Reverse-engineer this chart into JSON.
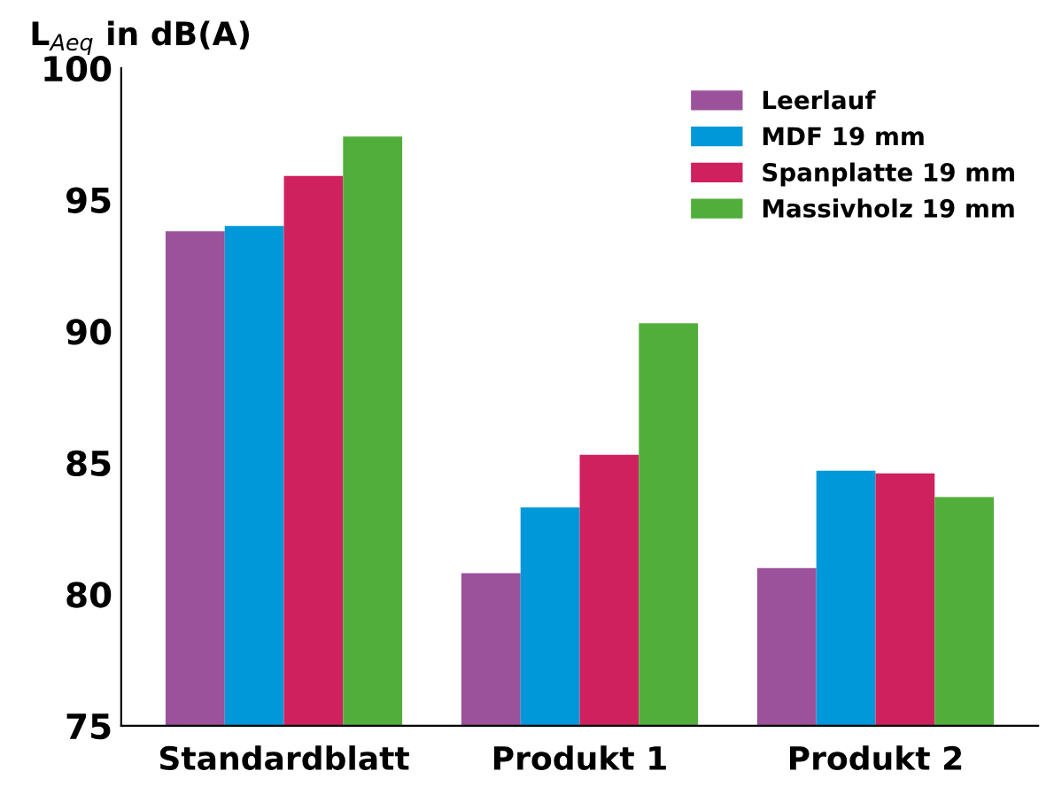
{
  "chart_data": {
    "type": "bar",
    "ylabel": "L$_{Aeq}$ in dB(A)",
    "categories": [
      "Standardblatt",
      "Produkt 1",
      "Produkt 2"
    ],
    "series": [
      {
        "name": "Leerlauf",
        "color": "#9b529b",
        "values": [
          93.8,
          80.8,
          81.0
        ]
      },
      {
        "name": "MDF 19 mm",
        "color": "#0098d8",
        "values": [
          94.0,
          83.3,
          84.7
        ]
      },
      {
        "name": "Spanplatte 19 mm",
        "color": "#d0215f",
        "values": [
          95.9,
          85.3,
          84.6
        ]
      },
      {
        "name": "Massivholz 19 mm",
        "color": "#52ae3a",
        "values": [
          97.4,
          90.3,
          83.7
        ]
      }
    ],
    "ylim": [
      75,
      100
    ],
    "yticks": [
      75,
      80,
      85,
      90,
      95,
      100
    ],
    "grid": false,
    "legend": "top right"
  }
}
